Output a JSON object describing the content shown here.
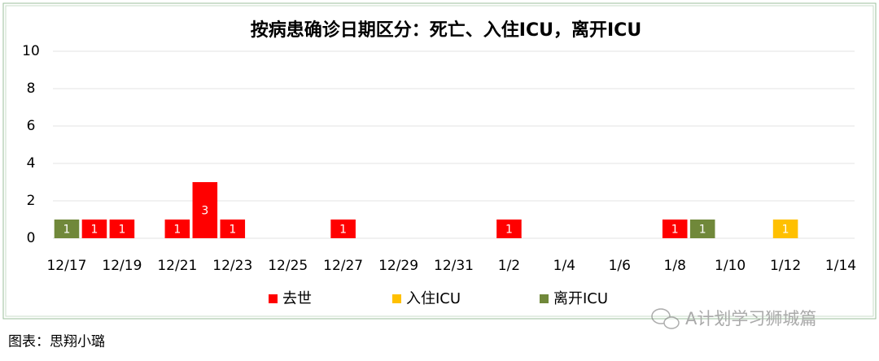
{
  "chart_data": {
    "type": "bar",
    "title": "按病患确诊日期区分：死亡、入住ICU，离开ICU",
    "categories": [
      "12/17",
      null,
      "12/19",
      null,
      "12/21",
      null,
      "12/23",
      null,
      "12/25",
      null,
      "12/27",
      null,
      "12/29",
      null,
      "12/31",
      null,
      "1/2",
      null,
      "1/4",
      null,
      "1/6",
      null,
      "1/8",
      null,
      "1/10",
      null,
      "1/12",
      null,
      "1/14"
    ],
    "series": [
      {
        "name": "去世",
        "color": "#ff0000",
        "values": [
          null,
          1,
          1,
          null,
          1,
          3,
          1,
          null,
          null,
          null,
          1,
          null,
          null,
          null,
          null,
          null,
          1,
          null,
          null,
          null,
          null,
          null,
          1,
          null,
          null,
          null,
          null,
          null,
          null
        ]
      },
      {
        "name": "入住ICU",
        "color": "#ffc000",
        "values": [
          null,
          null,
          null,
          null,
          null,
          null,
          null,
          null,
          null,
          null,
          null,
          null,
          null,
          null,
          null,
          null,
          null,
          null,
          null,
          null,
          null,
          null,
          null,
          null,
          null,
          null,
          1,
          null,
          null
        ]
      },
      {
        "name": "离开ICU",
        "color": "#70883a",
        "values": [
          1,
          null,
          null,
          null,
          null,
          null,
          null,
          null,
          null,
          null,
          null,
          null,
          null,
          null,
          null,
          null,
          null,
          null,
          null,
          null,
          null,
          null,
          null,
          1,
          null,
          null,
          null,
          null,
          null
        ]
      }
    ],
    "ylim": [
      0,
      10
    ],
    "yticks": [
      0,
      2,
      4,
      6,
      8,
      10
    ],
    "grid": true,
    "legend": "bottom"
  },
  "caption": "图表：思翔小璐",
  "watermark": "A计划学习狮城篇"
}
